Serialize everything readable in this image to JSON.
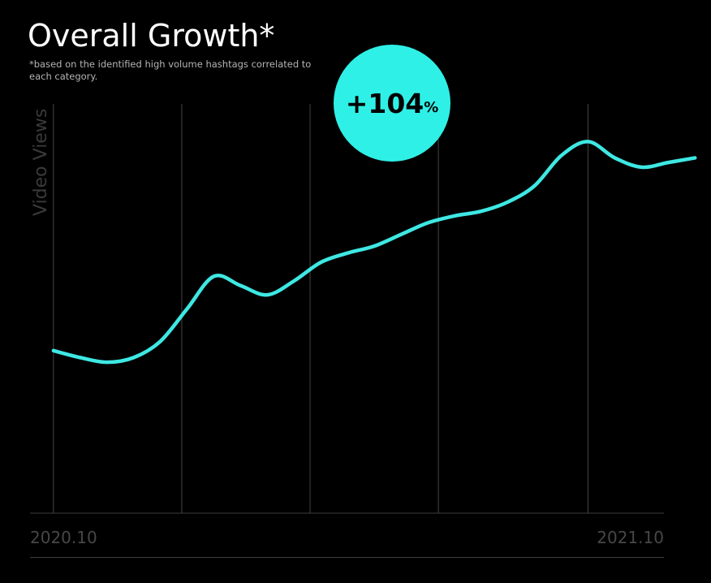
{
  "title": "Overall Growth*",
  "subtitle": "*based on the identified high volume hashtags correlated to each category.",
  "badge": {
    "value": "+104",
    "unit": "%"
  },
  "colors": {
    "line": "#3ee8e3",
    "badge": "#2ff0e6",
    "background": "#000000",
    "grid": "#444444"
  },
  "chart_data": {
    "type": "line",
    "title": "Overall Growth*",
    "ylabel": "Video Views",
    "xlabel": "",
    "x_tick_labels": [
      "2020.10",
      "2021.10"
    ],
    "x": [
      0.0,
      0.5,
      1.0,
      1.5,
      2.0,
      2.5,
      3.0,
      3.5,
      4.0,
      4.5,
      5.0,
      5.5,
      6.0,
      6.5,
      7.0,
      7.5,
      8.0,
      8.5,
      9.0,
      9.5,
      10.0,
      10.5,
      11.0,
      11.5,
      12.0
    ],
    "y": [
      35,
      33.5,
      32.5,
      33.5,
      37,
      44,
      51,
      49,
      47,
      50,
      54,
      56,
      57.5,
      60,
      62.5,
      64,
      65,
      67,
      70.5,
      77,
      80,
      76.5,
      74.5,
      75.5,
      76.5
    ],
    "series": [
      {
        "values": [
          35,
          33.5,
          32.5,
          33.5,
          37,
          44,
          51,
          49,
          47,
          50,
          54,
          56,
          57.5,
          60,
          62.5,
          64,
          65,
          67,
          70.5,
          77,
          80,
          76.5,
          74.5,
          75.5,
          76.5
        ]
      }
    ],
    "xlim": [
      -1,
      12.3
    ],
    "ylim": [
      0,
      100
    ],
    "grid": "vertical",
    "gridline_x": [
      0,
      2.4,
      4.8,
      7.2,
      10
    ],
    "legend": "none"
  }
}
